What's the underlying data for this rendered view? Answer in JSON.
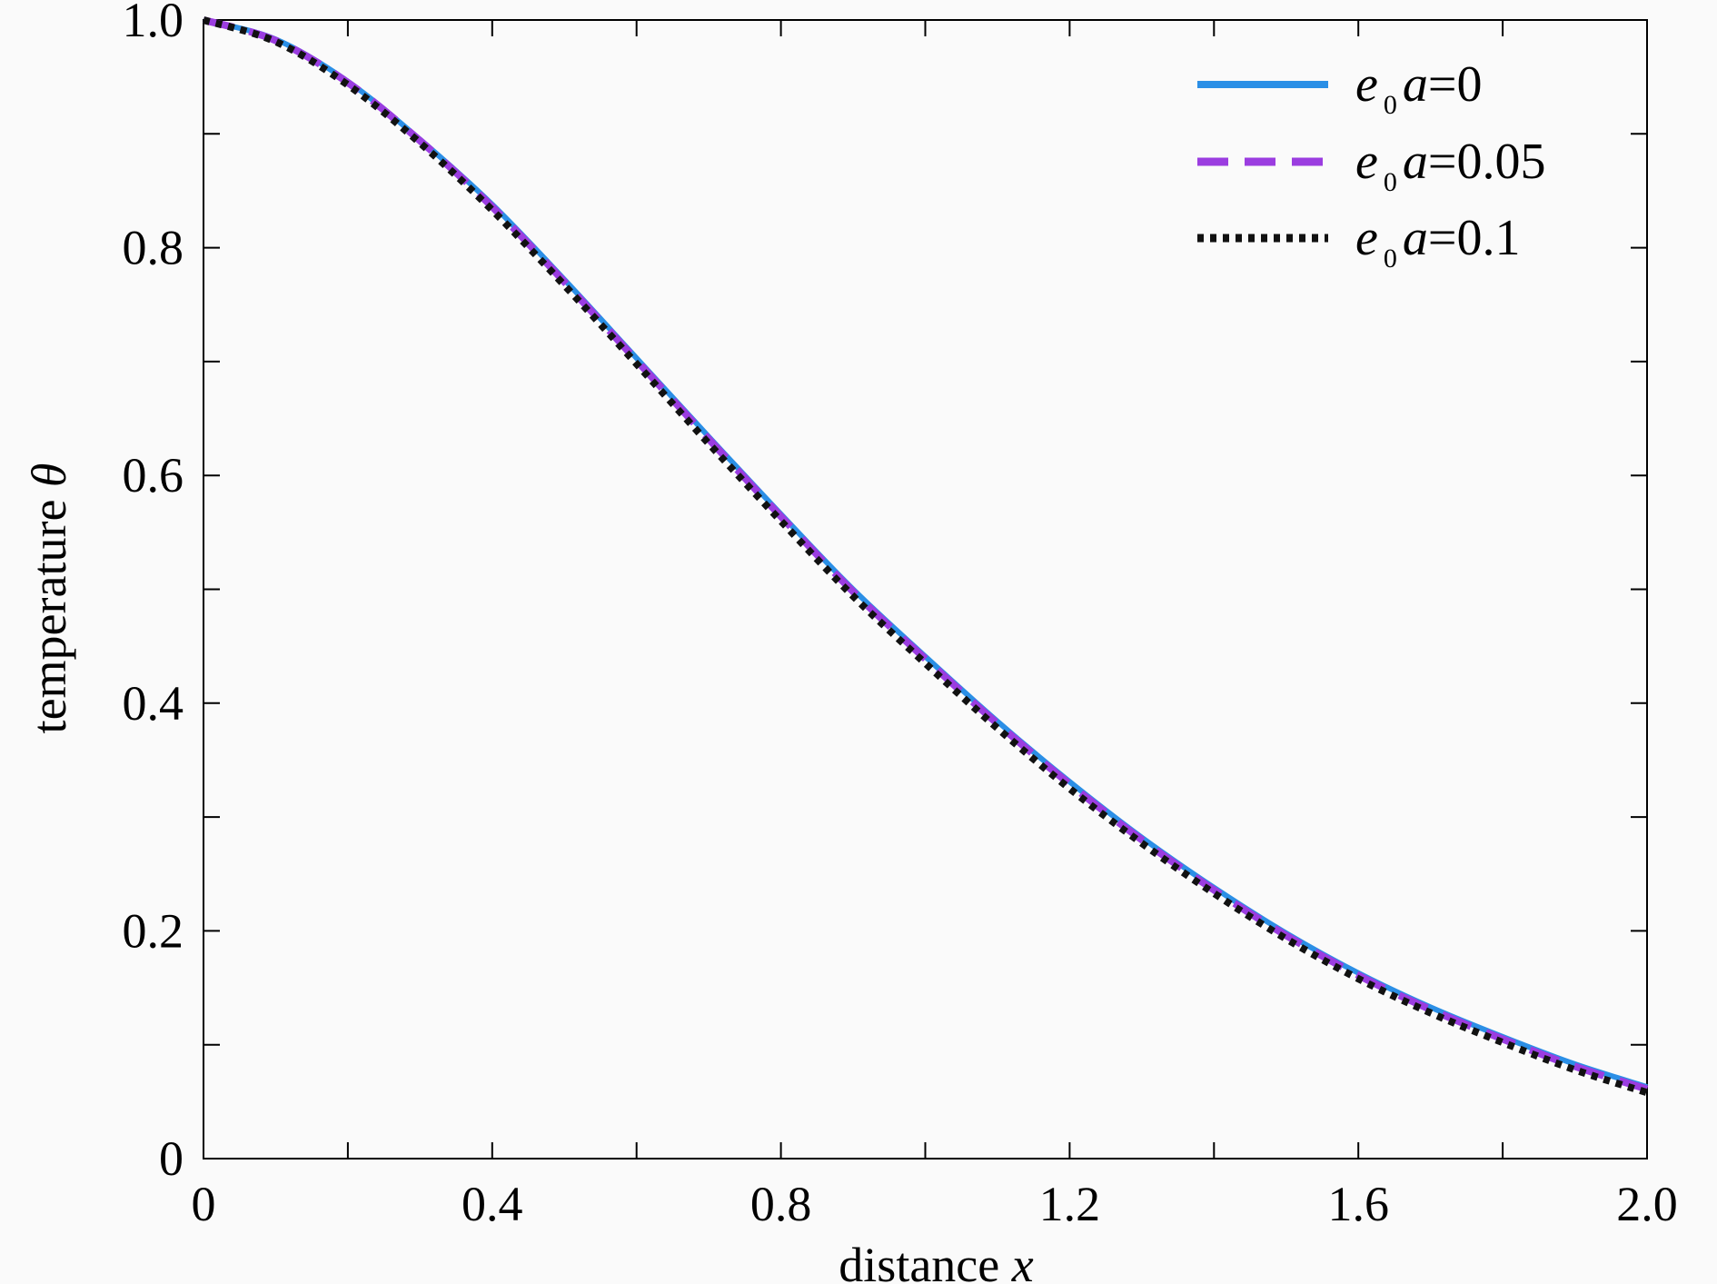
{
  "chart_data": {
    "type": "line",
    "xlabel": "distance",
    "xlabel_var": "x",
    "ylabel": "temperature",
    "ylabel_var": "θ",
    "xlim": [
      0,
      2.0
    ],
    "ylim": [
      0,
      1.0
    ],
    "xticks": [
      {
        "value": 0,
        "label": "0"
      },
      {
        "value": 0.4,
        "label": "0.4"
      },
      {
        "value": 0.8,
        "label": "0.8"
      },
      {
        "value": 1.2,
        "label": "1.2"
      },
      {
        "value": 1.6,
        "label": "1.6"
      },
      {
        "value": 2.0,
        "label": "2.0"
      }
    ],
    "yticks": [
      {
        "value": 0,
        "label": "0"
      },
      {
        "value": 0.2,
        "label": "0.2"
      },
      {
        "value": 0.4,
        "label": "0.4"
      },
      {
        "value": 0.6,
        "label": "0.6"
      },
      {
        "value": 0.8,
        "label": "0.8"
      },
      {
        "value": 1.0,
        "label": "1.0"
      }
    ],
    "grid": false,
    "legend_position": "top-right",
    "series": [
      {
        "name": "e0a=0",
        "legend": {
          "base": "e",
          "sub": "0",
          "rest": "a",
          "value": "=0"
        },
        "color": "#2b8fe6",
        "style": "solid",
        "x": [
          0,
          0.1,
          0.2,
          0.3,
          0.4,
          0.5,
          0.6,
          0.7,
          0.8,
          0.9,
          1.0,
          1.1,
          1.2,
          1.3,
          1.4,
          1.5,
          1.6,
          1.7,
          1.8,
          1.9,
          2.0
        ],
        "y": [
          1.0,
          0.983,
          0.946,
          0.895,
          0.838,
          0.772,
          0.703,
          0.634,
          0.566,
          0.5,
          0.441,
          0.384,
          0.331,
          0.282,
          0.238,
          0.198,
          0.163,
          0.133,
          0.107,
          0.083,
          0.063
        ]
      },
      {
        "name": "e0a=0.05",
        "legend": {
          "base": "e",
          "sub": "0",
          "rest": "a",
          "value": "=0.05"
        },
        "color": "#9b3de0",
        "style": "dashed",
        "x": [
          0,
          0.1,
          0.2,
          0.3,
          0.4,
          0.5,
          0.6,
          0.7,
          0.8,
          0.9,
          1.0,
          1.1,
          1.2,
          1.3,
          1.4,
          1.5,
          1.6,
          1.7,
          1.8,
          1.9,
          2.0
        ],
        "y": [
          1.0,
          0.982,
          0.945,
          0.894,
          0.836,
          0.77,
          0.701,
          0.632,
          0.564,
          0.498,
          0.439,
          0.382,
          0.329,
          0.28,
          0.236,
          0.196,
          0.161,
          0.131,
          0.105,
          0.081,
          0.061
        ]
      },
      {
        "name": "e0a=0.1",
        "legend": {
          "base": "e",
          "sub": "0",
          "rest": "a",
          "value": "=0.1"
        },
        "color": "#111111",
        "style": "dotted",
        "x": [
          0,
          0.1,
          0.2,
          0.3,
          0.4,
          0.5,
          0.6,
          0.7,
          0.8,
          0.9,
          1.0,
          1.1,
          1.2,
          1.3,
          1.4,
          1.5,
          1.6,
          1.7,
          1.8,
          1.9,
          2.0
        ],
        "y": [
          1.0,
          0.981,
          0.943,
          0.892,
          0.833,
          0.767,
          0.698,
          0.628,
          0.56,
          0.494,
          0.435,
          0.378,
          0.325,
          0.277,
          0.233,
          0.193,
          0.158,
          0.128,
          0.102,
          0.078,
          0.058
        ]
      }
    ]
  }
}
